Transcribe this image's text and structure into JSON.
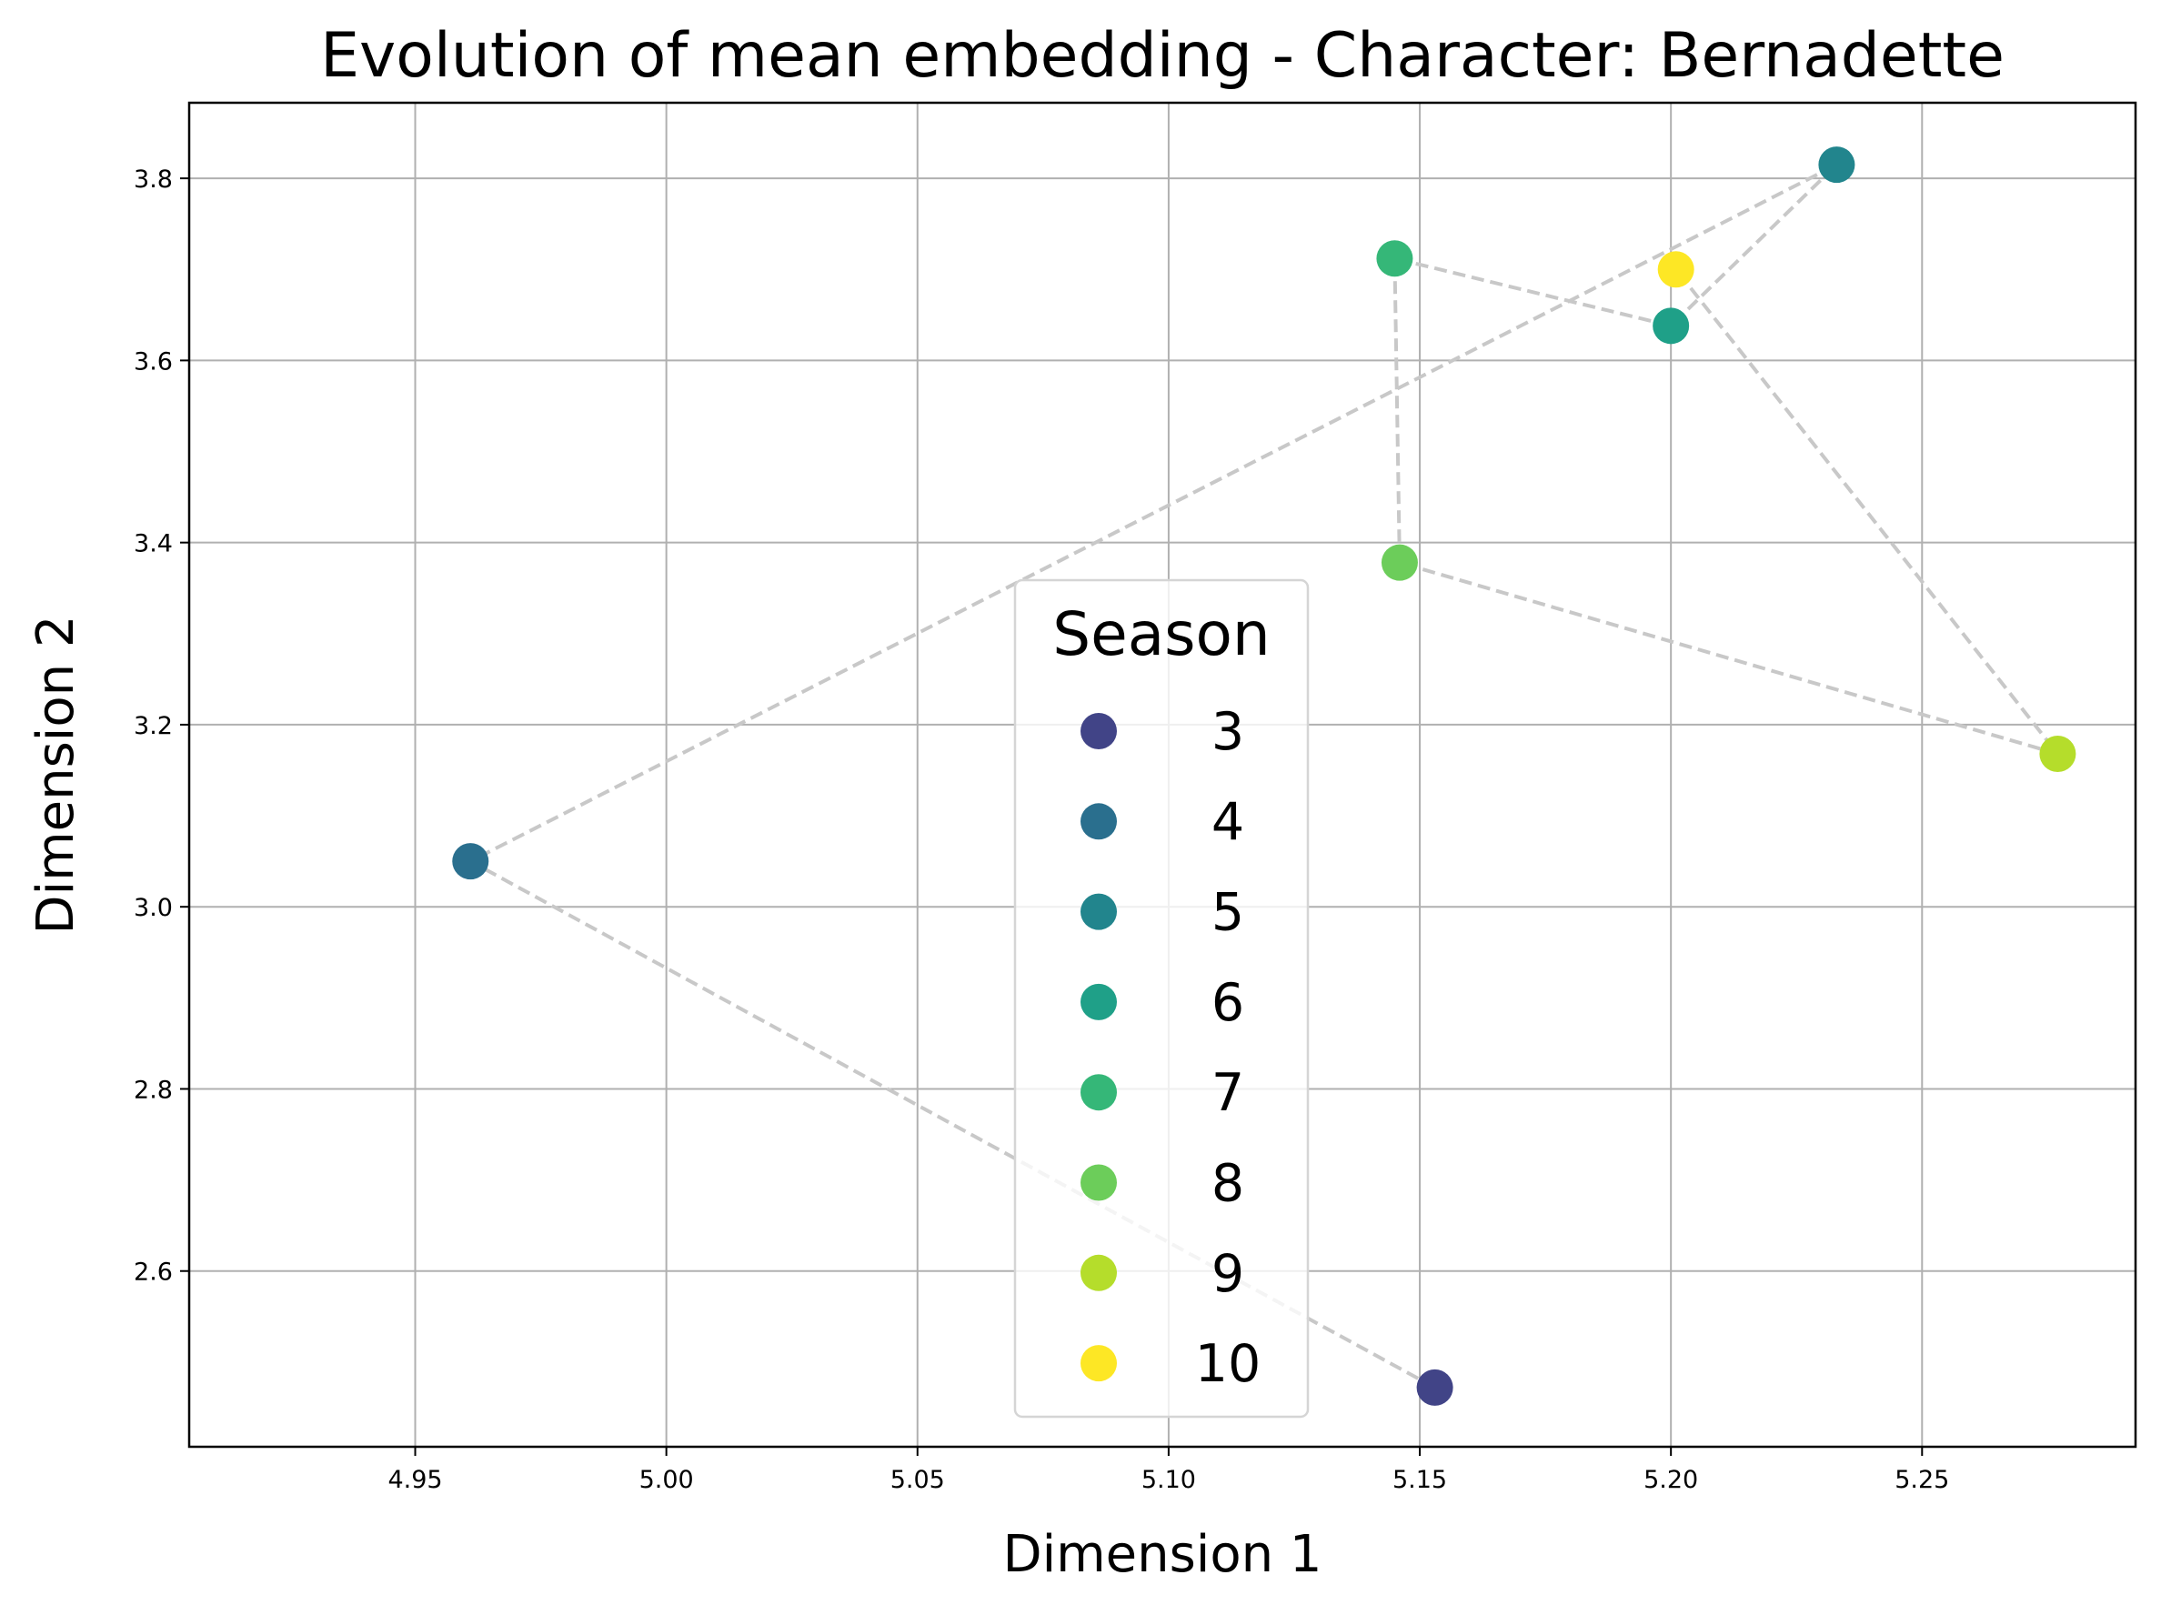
{
  "chart_data": {
    "type": "scatter",
    "title": "Evolution of mean embedding - Character: Bernadette",
    "xlabel": "Dimension 1",
    "ylabel": "Dimension 2",
    "xlim": [
      4.905,
      5.2925
    ],
    "ylim": [
      2.407,
      3.883
    ],
    "x_ticks": [
      "4.95",
      "5.00",
      "5.05",
      "5.10",
      "5.15",
      "5.20",
      "5.25"
    ],
    "y_ticks": [
      "2.6",
      "2.8",
      "3.0",
      "3.2",
      "3.4",
      "3.6",
      "3.8"
    ],
    "grid": true,
    "legend": {
      "title": "Season",
      "placement": "lower-center"
    },
    "connector": {
      "style": "dashed",
      "color": "#c8c8c8"
    },
    "series": [
      {
        "name": "3",
        "color": "#414487",
        "x": 5.153,
        "y": 2.472
      },
      {
        "name": "4",
        "color": "#2a6f8e",
        "x": 4.961,
        "y": 3.05
      },
      {
        "name": "5",
        "color": "#22858d",
        "x": 5.233,
        "y": 3.815
      },
      {
        "name": "6",
        "color": "#1fa088",
        "x": 5.2,
        "y": 3.638
      },
      {
        "name": "7",
        "color": "#35b778",
        "x": 5.145,
        "y": 3.712
      },
      {
        "name": "8",
        "color": "#6ccd5a",
        "x": 5.146,
        "y": 3.378
      },
      {
        "name": "9",
        "color": "#b5dd2b",
        "x": 5.277,
        "y": 3.168
      },
      {
        "name": "10",
        "color": "#fde725",
        "x": 5.201,
        "y": 3.7
      }
    ]
  }
}
